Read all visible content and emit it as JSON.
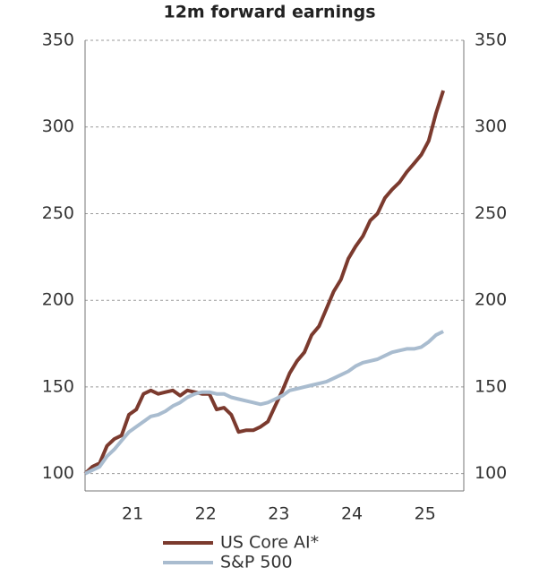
{
  "chart_data": {
    "type": "line",
    "title": "12m forward earnings",
    "x": [
      2020.35,
      2020.45,
      2020.55,
      2020.65,
      2020.75,
      2020.85,
      2020.95,
      2021.05,
      2021.15,
      2021.25,
      2021.35,
      2021.45,
      2021.55,
      2021.65,
      2021.75,
      2021.85,
      2021.95,
      2022.05,
      2022.15,
      2022.25,
      2022.35,
      2022.45,
      2022.55,
      2022.65,
      2022.75,
      2022.85,
      2022.95,
      2023.05,
      2023.15,
      2023.25,
      2023.35,
      2023.45,
      2023.55,
      2023.65,
      2023.75,
      2023.85,
      2023.95,
      2024.05,
      2024.15,
      2024.25,
      2024.35,
      2024.45,
      2024.55,
      2024.65,
      2024.75,
      2024.85,
      2024.95,
      2025.05,
      2025.15,
      2025.25
    ],
    "series": [
      {
        "name": "US Core AI*",
        "color": "#7b3a2e",
        "values": [
          100,
          104,
          106,
          116,
          120,
          122,
          134,
          137,
          146,
          148,
          146,
          147,
          148,
          145,
          148,
          147,
          146,
          146,
          137,
          138,
          134,
          124,
          125,
          125,
          127,
          130,
          139,
          148,
          158,
          165,
          170,
          180,
          185,
          195,
          205,
          212,
          224,
          231,
          237,
          246,
          250,
          259,
          264,
          268,
          274,
          279,
          284,
          292,
          308,
          321
        ]
      },
      {
        "name": "S&P 500",
        "color": "#a9bccf",
        "values": [
          100,
          102,
          104,
          110,
          114,
          119,
          124,
          127,
          130,
          133,
          134,
          136,
          139,
          141,
          144,
          146,
          147,
          147,
          146,
          146,
          144,
          143,
          142,
          141,
          140,
          141,
          143,
          145,
          148,
          149,
          150,
          151,
          152,
          153,
          155,
          157,
          159,
          162,
          164,
          165,
          166,
          168,
          170,
          171,
          172,
          172,
          173,
          176,
          180,
          182
        ]
      }
    ],
    "xlim": [
      2020.35,
      2025.53
    ],
    "xticks": [
      {
        "value": 2021,
        "label": "21"
      },
      {
        "value": 2022,
        "label": "22"
      },
      {
        "value": 2023,
        "label": "23"
      },
      {
        "value": 2024,
        "label": "24"
      },
      {
        "value": 2025,
        "label": "25"
      }
    ],
    "ylim": [
      90,
      350
    ],
    "yticks": [
      100,
      150,
      200,
      250,
      300,
      350
    ],
    "y2lim": [
      90,
      350
    ],
    "y2ticks": [
      100,
      150,
      200,
      250,
      300,
      350
    ],
    "grid": true
  }
}
